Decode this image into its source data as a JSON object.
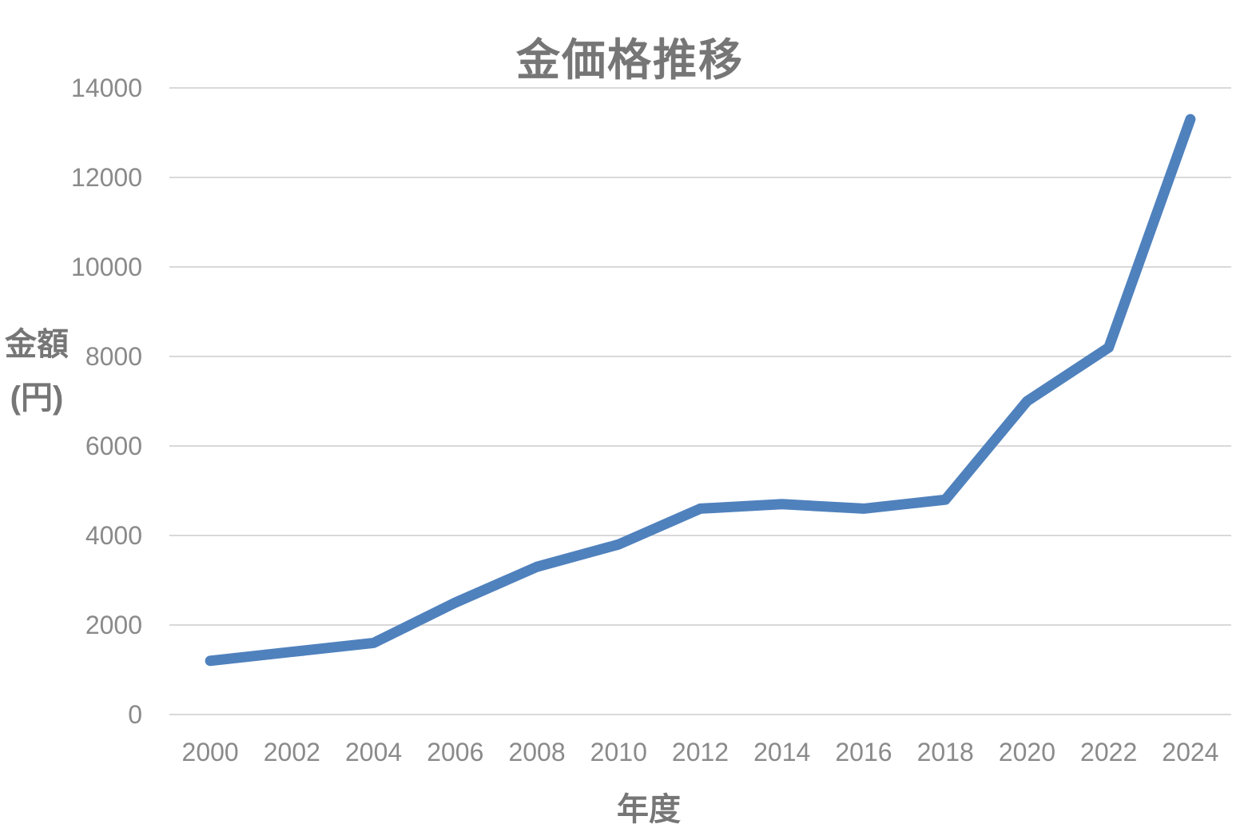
{
  "chart": {
    "title": "金価格推移",
    "x_axis_title": "年度",
    "y_axis_title_line1": "金額",
    "y_axis_title_line2": "(円)"
  },
  "chart_data": {
    "type": "line",
    "title": "金価格推移",
    "xlabel": "年度",
    "ylabel": "金額(円)",
    "categories": [
      "2000",
      "2002",
      "2004",
      "2006",
      "2008",
      "2010",
      "2012",
      "2014",
      "2016",
      "2018",
      "2020",
      "2022",
      "2024"
    ],
    "values": [
      1200,
      1400,
      1600,
      2500,
      3300,
      3800,
      4600,
      4700,
      4600,
      4800,
      7000,
      8200,
      13300
    ],
    "y_ticks": [
      0,
      2000,
      4000,
      6000,
      8000,
      10000,
      12000,
      14000
    ],
    "ylim": [
      0,
      14000
    ],
    "grid": "horizontal-only",
    "legend": "none",
    "colors": {
      "line": "#4F81BD",
      "gridline": "#D9D9D9",
      "tick_label": "#8A8A8A",
      "title": "#767676",
      "axis_title": "#767676",
      "background": "#FFFFFF"
    }
  }
}
